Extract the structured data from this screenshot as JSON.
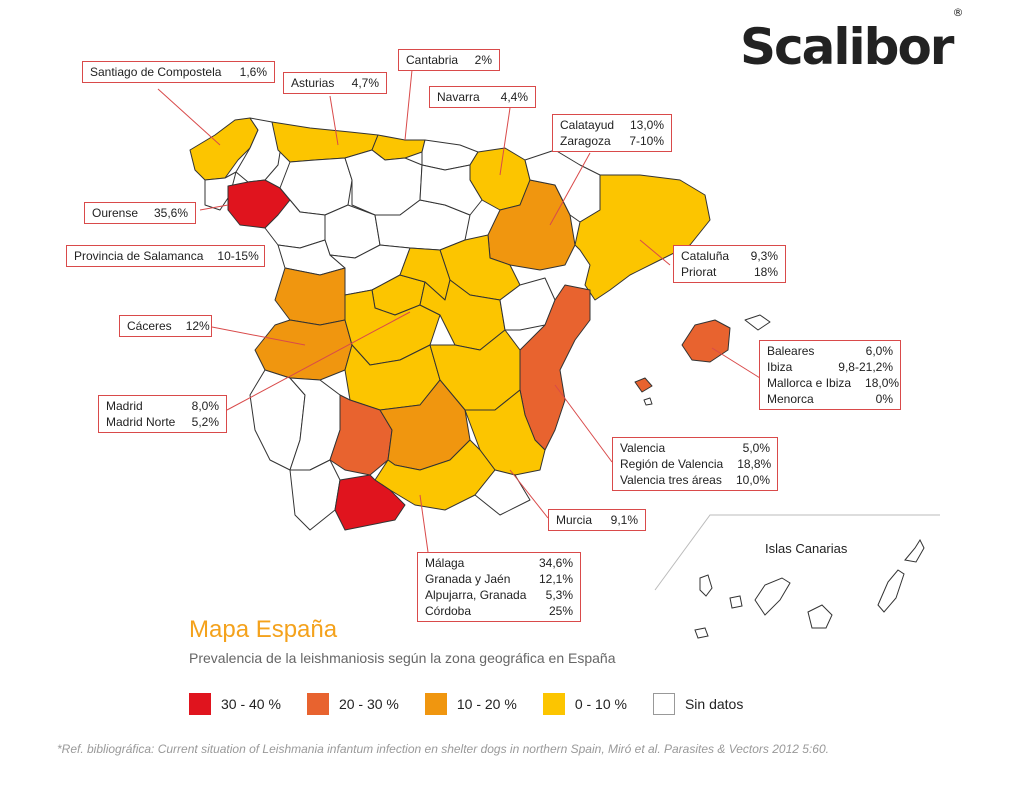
{
  "brand": {
    "name": "Scalibor",
    "mark": "®"
  },
  "title": "Mapa España",
  "subtitle": "Prevalencia de la leishmaniosis según la zona geográfica en España",
  "canarias_label": "Islas Canarias",
  "reference": "*Ref. bibliográfica: Current situation of Leishmania infantum infection en shelter dogs in northern Spain, Miró et al. Parasites & Vectors 2012 5:60.",
  "colors": {
    "c30_40": "#e0141e",
    "c20_30": "#e8632f",
    "c10_20": "#f0960f",
    "c0_10": "#fcc500",
    "sin_datos": "#ffffff",
    "border": "#333333",
    "callout": "#d94a4a"
  },
  "legend": [
    {
      "label": "30 - 40 %",
      "color": "#e0141e"
    },
    {
      "label": "20 - 30 %",
      "color": "#e8632f"
    },
    {
      "label": "10 - 20 %",
      "color": "#f0960f"
    },
    {
      "label": "0 - 10 %",
      "color": "#fcc500"
    },
    {
      "label": "Sin datos",
      "color": "#ffffff"
    }
  ],
  "callouts": {
    "santiago": [
      {
        "name": "Santiago de Compostela",
        "value": "1,6%"
      }
    ],
    "asturias": [
      {
        "name": "Asturias",
        "value": "4,7%"
      }
    ],
    "cantabria": [
      {
        "name": "Cantabria",
        "value": "2%"
      }
    ],
    "navarra": [
      {
        "name": "Navarra",
        "value": "4,4%"
      }
    ],
    "aragon": [
      {
        "name": "Calatayud",
        "value": "13,0%"
      },
      {
        "name": "Zaragoza",
        "value": "7-10%"
      }
    ],
    "ourense": [
      {
        "name": "Ourense",
        "value": "35,6%"
      }
    ],
    "salamanca": [
      {
        "name": "Provincia de Salamanca",
        "value": "10-15%"
      }
    ],
    "cataluna": [
      {
        "name": "Cataluña",
        "value": "9,3%"
      },
      {
        "name": "Priorat",
        "value": "18%"
      }
    ],
    "caceres": [
      {
        "name": "Cáceres",
        "value": "12%"
      }
    ],
    "baleares": [
      {
        "name": "Baleares",
        "value": "6,0%"
      },
      {
        "name": "Ibiza",
        "value": "9,8-21,2%"
      },
      {
        "name": "Mallorca e Ibiza",
        "value": "18,0%"
      },
      {
        "name": "Menorca",
        "value": "0%"
      }
    ],
    "madrid": [
      {
        "name": "Madrid",
        "value": "8,0%"
      },
      {
        "name": "Madrid Norte",
        "value": "5,2%"
      }
    ],
    "valencia": [
      {
        "name": "Valencia",
        "value": "5,0%"
      },
      {
        "name": "Región de Valencia",
        "value": "18,8%"
      },
      {
        "name": "Valencia tres áreas",
        "value": "10,0%"
      }
    ],
    "murcia": [
      {
        "name": "Murcia",
        "value": "9,1%"
      }
    ],
    "andalucia": [
      {
        "name": "Málaga",
        "value": "34,6%"
      },
      {
        "name": "Granada y Jaén",
        "value": "12,1%"
      },
      {
        "name": "Alpujarra, Granada",
        "value": "5,3%"
      },
      {
        "name": "Córdoba",
        "value": "25%"
      }
    ]
  }
}
